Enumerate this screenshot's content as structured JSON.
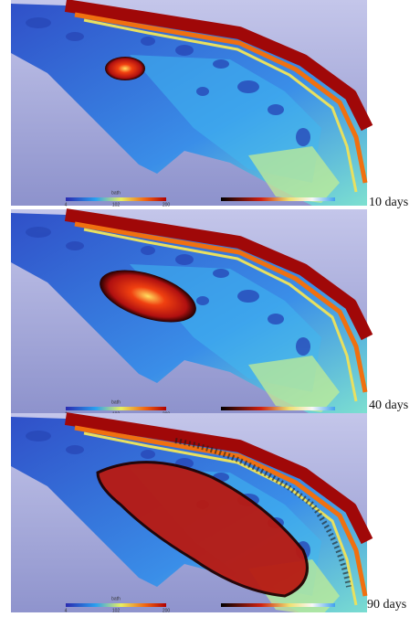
{
  "panels": [
    {
      "label": "10 days",
      "colorbar": {
        "title": "bath",
        "ticks": [
          "4",
          "102",
          "200"
        ]
      }
    },
    {
      "label": "40 days",
      "colorbar": {
        "title": "bath",
        "ticks": [
          "4",
          "102",
          "200"
        ]
      }
    },
    {
      "label": "90 days",
      "colorbar": {
        "title": "bath",
        "ticks": [
          "4",
          "102",
          "200"
        ]
      }
    }
  ]
}
